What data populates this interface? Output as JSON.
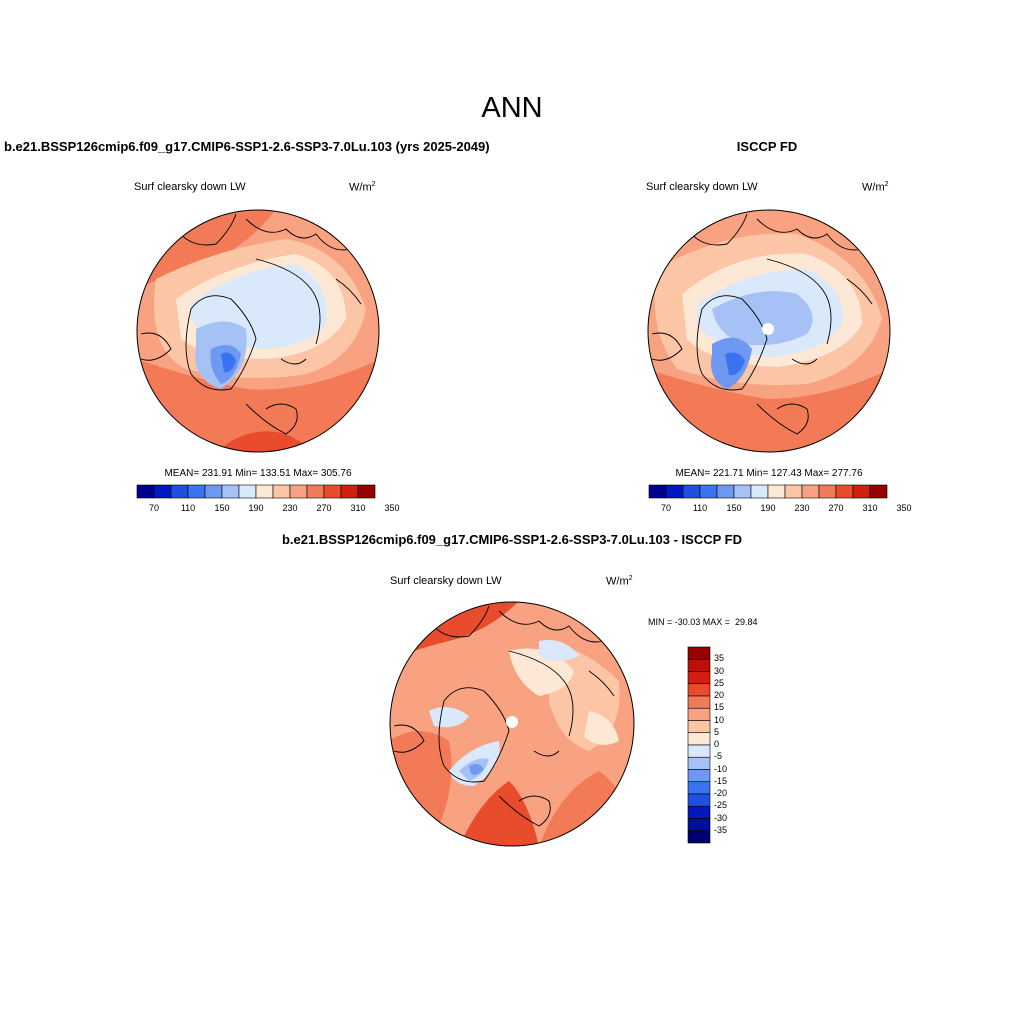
{
  "page": {
    "season": "ANN"
  },
  "palette": {
    "fill": [
      "#000090",
      "#0018c0",
      "#1f4fe0",
      "#3a73ef",
      "#6f98f2",
      "#a6c1f6",
      "#d9e8fb",
      "#fde8d6",
      "#fbc5a6",
      "#f8a281",
      "#f27a57",
      "#e84c2c",
      "#d11f10",
      "#990000"
    ],
    "land_outline": "#000000"
  },
  "panels": [
    {
      "id": "model",
      "heading": "b.e21.BSSP126cmip6.f09_g17.CMIP6-SSP1-2.6-SSP3-7.0Lu.103 (yrs 2025-2049)",
      "variable": "Surf clearsky down LW",
      "units_base": "W/m",
      "units_exp": "2",
      "stats": "MEAN= 231.91  Min= 133.51  Max= 305.76",
      "colorbar_ticks": [
        "70",
        "110",
        "150",
        "190",
        "230",
        "270",
        "310",
        "350"
      ]
    },
    {
      "id": "obs",
      "heading": "ISCCP FD",
      "variable": "Surf clearsky down LW",
      "units_base": "W/m",
      "units_exp": "2",
      "stats": "MEAN= 221.71  Min= 127.43  Max= 277.76",
      "colorbar_ticks": [
        "70",
        "110",
        "150",
        "190",
        "230",
        "270",
        "310",
        "350"
      ]
    },
    {
      "id": "diff",
      "heading": "b.e21.BSSP126cmip6.f09_g17.CMIP6-SSP1-2.6-SSP3-7.0Lu.103 - ISCCP FD",
      "variable": "Surf clearsky down LW",
      "units_base": "W/m",
      "units_exp": "2",
      "stats": "MIN = -30.03 MAX =  29.84",
      "colorbar_ticks": [
        "35",
        "30",
        "25",
        "20",
        "15",
        "10",
        "5",
        "0",
        "-5",
        "-10",
        "-15",
        "-20",
        "-25",
        "-30",
        "-35"
      ]
    }
  ]
}
